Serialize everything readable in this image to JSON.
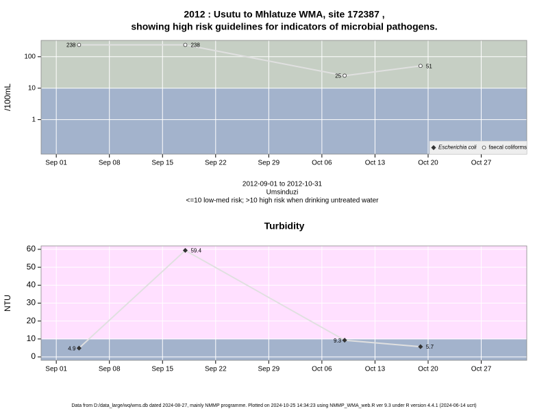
{
  "chart_data": [
    {
      "type": "line",
      "title": [
        "2012 : Usutu to Mhlatuze WMA, site 172387 ,",
        "showing high risk guidelines for indicators of microbial pathogens."
      ],
      "y_label": "/100mL",
      "log_y": true,
      "x": [
        "2012-09-04",
        "2012-09-18",
        "2012-10-09",
        "2012-10-19"
      ],
      "xlim": [
        "2012-08-30",
        "2012-11-02"
      ],
      "xticks": [
        {
          "value": "2012-09-01",
          "label": "Sep 01"
        },
        {
          "value": "2012-09-08",
          "label": "Sep 08"
        },
        {
          "value": "2012-09-15",
          "label": "Sep 15"
        },
        {
          "value": "2012-09-22",
          "label": "Sep 22"
        },
        {
          "value": "2012-09-29",
          "label": "Sep 29"
        },
        {
          "value": "2012-10-06",
          "label": "Oct 06"
        },
        {
          "value": "2012-10-13",
          "label": "Oct 13"
        },
        {
          "value": "2012-10-20",
          "label": "Oct 20"
        },
        {
          "value": "2012-10-27",
          "label": "Oct 27"
        }
      ],
      "ylim": [
        0.08,
        330
      ],
      "yticks": [
        1,
        10,
        100
      ],
      "threshold": 10,
      "band_colors": {
        "low": "#a3b3cc",
        "high": "#c6cfc4"
      },
      "line_color": "#e0e0e0",
      "grid": true,
      "legend": "bottom-right",
      "series": [
        {
          "name": "Escherichia coli",
          "color": "#333333",
          "marker": "diamond",
          "values": [
            null,
            null,
            null,
            null
          ]
        },
        {
          "name": "faecal coliforms",
          "color": "#333333",
          "marker": "circle",
          "values": [
            238,
            238,
            25,
            51
          ]
        }
      ],
      "notes": [
        "2012-09-01 to 2012-10-31",
        "Umsinduzi",
        "<=10 low-med risk; >10 high risk when drinking untreated water"
      ]
    },
    {
      "type": "line",
      "title": [
        "Turbidity"
      ],
      "y_label": "NTU",
      "log_y": false,
      "x": [
        "2012-09-04",
        "2012-09-18",
        "2012-10-09",
        "2012-10-19"
      ],
      "xlim": [
        "2012-08-30",
        "2012-11-02"
      ],
      "xticks": [
        {
          "value": "2012-09-01",
          "label": "Sep 01"
        },
        {
          "value": "2012-09-08",
          "label": "Sep 08"
        },
        {
          "value": "2012-09-15",
          "label": "Sep 15"
        },
        {
          "value": "2012-09-22",
          "label": "Sep 22"
        },
        {
          "value": "2012-09-29",
          "label": "Sep 29"
        },
        {
          "value": "2012-10-06",
          "label": "Oct 06"
        },
        {
          "value": "2012-10-13",
          "label": "Oct 13"
        },
        {
          "value": "2012-10-20",
          "label": "Oct 20"
        },
        {
          "value": "2012-10-27",
          "label": "Oct 27"
        }
      ],
      "ylim": [
        -1.9,
        61.9
      ],
      "yticks": [
        0,
        10,
        20,
        30,
        40,
        50,
        60
      ],
      "threshold": 10,
      "band_colors": {
        "low": "#a3b3cc",
        "high": "#ffe0ff"
      },
      "line_color": "#e0e0e0",
      "grid": true,
      "series": [
        {
          "name": "Turbidity",
          "color": "#333333",
          "marker": "diamond",
          "values": [
            4.9,
            59.4,
            9.3,
            5.7
          ]
        }
      ]
    }
  ],
  "footer": "Data from D:/data_large/wq/wms.db dated 2024-08-27, mainly NMMP programme. Plotted on 2024-10-25 14:34:23 using NMMP_WMA_web.R ver 9.3 under R version 4.4.1 (2024-06-14 ucrt)"
}
